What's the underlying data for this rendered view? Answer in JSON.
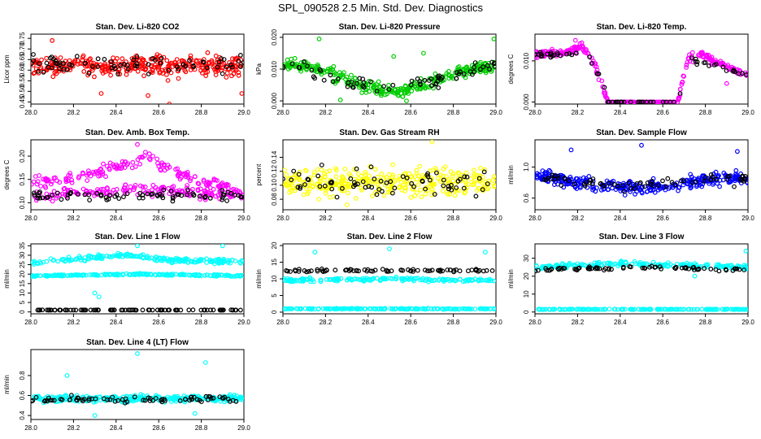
{
  "page_title": "SPL_090528  2.5 Min. Std. Dev. Diagnostics",
  "chart_data": [
    {
      "type": "scatter",
      "title": "Stan. Dev. Li-820 CO2",
      "ylabel": "Licor ppm",
      "xlim": [
        28.0,
        29.0
      ],
      "ylim": [
        0.44,
        0.77
      ],
      "yticks": [
        "0.45",
        "0.50",
        "0.55",
        "0.60",
        "0.65",
        "0.70",
        "0.75"
      ],
      "xticks": [
        "28.0",
        "28.2",
        "28.4",
        "28.6",
        "28.8",
        "29.0"
      ],
      "color": "#ff0000",
      "primary": {
        "base": [
          [
            28.0,
            0.62
          ],
          [
            0.5,
            0.62
          ],
          [
            1.0,
            0.62
          ]
        ],
        "noise": 0.045,
        "n": 330,
        "outliers": [
          [
            28.1,
            0.74
          ],
          [
            28.33,
            0.49
          ],
          [
            28.55,
            0.48
          ],
          [
            28.65,
            0.44
          ],
          [
            28.99,
            0.49
          ]
        ]
      },
      "black": {
        "base": [
          [
            28.0,
            0.63
          ],
          [
            1.0,
            0.63
          ]
        ],
        "noise": 0.045,
        "n": 75
      }
    },
    {
      "type": "scatter",
      "title": "Stan. Dev. Li-820 Pressure",
      "ylabel": "kPa",
      "xlim": [
        28.0,
        29.0
      ],
      "ylim": [
        -0.001,
        0.021
      ],
      "yticks": [
        "0.000",
        "0.010",
        "0.020"
      ],
      "xticks": [
        "28.0",
        "28.2",
        "28.4",
        "28.6",
        "28.8",
        "29.0"
      ],
      "color": "#00cc00",
      "primary": {
        "base": [
          [
            28.0,
            0.0115
          ],
          [
            28.2,
            0.0095
          ],
          [
            28.3,
            0.0065
          ],
          [
            28.45,
            0.0035
          ],
          [
            28.55,
            0.003
          ],
          [
            28.65,
            0.005
          ],
          [
            28.8,
            0.0085
          ],
          [
            29.0,
            0.0115
          ]
        ],
        "noise": 0.0018,
        "n": 330,
        "outliers": [
          [
            28.17,
            0.0195
          ],
          [
            28.52,
            0.014
          ],
          [
            28.66,
            0.015
          ],
          [
            28.99,
            0.0195
          ],
          [
            28.27,
            0.0003
          ],
          [
            28.58,
            0.0
          ]
        ]
      },
      "black": {
        "base": [
          [
            28.0,
            0.0115
          ],
          [
            28.3,
            0.006
          ],
          [
            28.5,
            0.004
          ],
          [
            28.7,
            0.006
          ],
          [
            29.0,
            0.0115
          ]
        ],
        "noise": 0.002,
        "n": 70
      }
    },
    {
      "type": "scatter",
      "title": "Stan. Dev. Li-820 Temp.",
      "ylabel": "degrees C",
      "xlim": [
        28.0,
        29.0
      ],
      "ylim": [
        -0.0005,
        0.0165
      ],
      "yticks": [
        "0.000",
        "0.010"
      ],
      "xticks": [
        "28.0",
        "28.2",
        "28.4",
        "28.6",
        "28.8",
        "29.0"
      ],
      "color": "#ff00ff",
      "primary": {
        "base": [
          [
            28.0,
            0.0115
          ],
          [
            28.15,
            0.012
          ],
          [
            28.22,
            0.0135
          ],
          [
            28.28,
            0.0095
          ],
          [
            28.31,
            0.005
          ],
          [
            28.34,
            0.0
          ],
          [
            28.67,
            0.0
          ],
          [
            28.69,
            0.0045
          ],
          [
            28.72,
            0.0105
          ],
          [
            28.78,
            0.0115
          ],
          [
            28.88,
            0.009
          ],
          [
            29.0,
            0.0065
          ]
        ],
        "noise": 0.0009,
        "n": 320,
        "outliers": [
          [
            28.19,
            0.015
          ],
          [
            28.9,
            0.0045
          ]
        ]
      },
      "black": {
        "base": [
          [
            28.0,
            0.0115
          ],
          [
            28.25,
            0.012
          ],
          [
            28.31,
            0.005
          ],
          [
            28.34,
            0.0
          ],
          [
            28.67,
            0.0
          ],
          [
            28.72,
            0.0105
          ],
          [
            29.0,
            0.0065
          ]
        ],
        "noise": 0.0009,
        "n": 70
      }
    },
    {
      "type": "scatter",
      "title": "Stan. Dev. Amb. Box Temp.",
      "ylabel": "degrees C",
      "xlim": [
        28.0,
        29.0
      ],
      "ylim": [
        0.085,
        0.235
      ],
      "yticks": [
        "0.10",
        "0.15",
        "0.20"
      ],
      "xticks": [
        "28.0",
        "28.2",
        "28.4",
        "28.6",
        "28.8",
        "29.0"
      ],
      "color": "#ff00ff",
      "primary": {
        "base": [
          [
            28.0,
            0.14
          ],
          [
            28.2,
            0.15
          ],
          [
            28.4,
            0.18
          ],
          [
            28.55,
            0.195
          ],
          [
            28.7,
            0.16
          ],
          [
            28.9,
            0.135
          ],
          [
            29.0,
            0.125
          ]
        ],
        "noise": 0.013,
        "n": 170,
        "outliers": [
          [
            28.5,
            0.225
          ]
        ]
      },
      "secondary": {
        "base": [
          [
            28.0,
            0.115
          ],
          [
            28.5,
            0.13
          ],
          [
            29.0,
            0.115
          ]
        ],
        "noise": 0.012,
        "n": 170
      },
      "black": {
        "base": [
          [
            28.0,
            0.115
          ],
          [
            1.0,
            0.115
          ]
        ],
        "noise": 0.01,
        "n": 75
      }
    },
    {
      "type": "scatter",
      "title": "Stan. Dev. Gas Stream RH",
      "ylabel": "percent",
      "xlim": [
        28.0,
        29.0
      ],
      "ylim": [
        0.065,
        0.165
      ],
      "yticks": [
        "0.08",
        "0.10",
        "0.12",
        "0.14"
      ],
      "xticks": [
        "28.0",
        "28.2",
        "28.4",
        "28.6",
        "28.8",
        "29.0"
      ],
      "color": "#ffff00",
      "primary": {
        "base": [
          [
            28.0,
            0.105
          ],
          [
            1.0,
            0.105
          ]
        ],
        "noise": 0.018,
        "n": 340,
        "outliers": [
          [
            28.7,
            0.162
          ],
          [
            28.3,
            0.072
          ]
        ]
      },
      "black": {
        "base": [
          [
            28.0,
            0.105
          ],
          [
            1.0,
            0.105
          ]
        ],
        "noise": 0.018,
        "n": 70
      }
    },
    {
      "type": "scatter",
      "title": "Stan. Dev. Sample Flow",
      "ylabel": "ml/min",
      "xlim": [
        28.0,
        29.0
      ],
      "ylim": [
        0.45,
        1.35
      ],
      "yticks": [
        "0.6",
        "1.0"
      ],
      "xticks": [
        "28.0",
        "28.2",
        "28.4",
        "28.6",
        "28.8",
        "29.0"
      ],
      "color": "#0000ff",
      "primary": {
        "base": [
          [
            28.0,
            0.9
          ],
          [
            28.2,
            0.8
          ],
          [
            28.35,
            0.75
          ],
          [
            28.5,
            0.73
          ],
          [
            28.7,
            0.78
          ],
          [
            28.85,
            0.85
          ],
          [
            29.0,
            0.85
          ]
        ],
        "noise": 0.08,
        "n": 330,
        "outliers": [
          [
            28.17,
            1.22
          ],
          [
            28.5,
            1.28
          ],
          [
            28.95,
            1.2
          ]
        ]
      },
      "black": {
        "base": [
          [
            28.0,
            0.88
          ],
          [
            28.4,
            0.75
          ],
          [
            29.0,
            0.85
          ]
        ],
        "noise": 0.07,
        "n": 70
      }
    },
    {
      "type": "scatter",
      "title": "Stan. Dev. Line 1 Flow",
      "ylabel": "ml/min",
      "xlim": [
        28.0,
        29.0
      ],
      "ylim": [
        -1,
        36
      ],
      "yticks": [
        "0",
        "5",
        "10",
        "15",
        "20",
        "25",
        "30",
        "35"
      ],
      "xticks": [
        "28.0",
        "28.2",
        "28.4",
        "28.6",
        "28.8",
        "29.0"
      ],
      "color": "#00ffff",
      "primary": {
        "base": [
          [
            28.0,
            26
          ],
          [
            28.2,
            28
          ],
          [
            28.45,
            30
          ],
          [
            28.6,
            28
          ],
          [
            28.8,
            27
          ],
          [
            29.0,
            27
          ]
        ],
        "noise": 1.2,
        "n": 200,
        "outliers": [
          [
            28.3,
            10
          ],
          [
            28.32,
            8
          ],
          [
            28.5,
            35
          ],
          [
            28.9,
            35
          ]
        ]
      },
      "secondary": {
        "base": [
          [
            28.0,
            19
          ],
          [
            28.5,
            20
          ],
          [
            29.0,
            19
          ]
        ],
        "noise": 0.4,
        "n": 200
      },
      "black": {
        "base": [
          [
            28.0,
            1
          ],
          [
            1.0,
            1
          ]
        ],
        "noise": 0.05,
        "n": 90
      }
    },
    {
      "type": "scatter",
      "title": "Stan. Dev. Line 2 Flow",
      "ylabel": "ml/min",
      "xlim": [
        28.0,
        29.0
      ],
      "ylim": [
        -0.5,
        20.5
      ],
      "yticks": [
        "0",
        "5",
        "10",
        "15",
        "20"
      ],
      "xticks": [
        "28.0",
        "28.2",
        "28.4",
        "28.6",
        "28.8",
        "29.0"
      ],
      "color": "#00ffff",
      "primary": {
        "base": [
          [
            28.0,
            9.5
          ],
          [
            28.5,
            10
          ],
          [
            29.0,
            9.5
          ]
        ],
        "noise": 0.5,
        "n": 170,
        "outliers": [
          [
            28.15,
            18
          ],
          [
            28.5,
            19
          ],
          [
            28.95,
            18
          ]
        ]
      },
      "secondary": {
        "base": [
          [
            28.0,
            1
          ],
          [
            1.0,
            1
          ]
        ],
        "noise": 0.12,
        "n": 170
      },
      "black": {
        "base": [
          [
            28.0,
            12.5
          ],
          [
            1.0,
            12.5
          ]
        ],
        "noise": 0.4,
        "n": 75
      }
    },
    {
      "type": "scatter",
      "title": "Stan. Dev. Line 3 Flow",
      "ylabel": "ml/min",
      "xlim": [
        28.0,
        29.0
      ],
      "ylim": [
        -1,
        38
      ],
      "yticks": [
        "0",
        "10",
        "20",
        "30"
      ],
      "xticks": [
        "28.0",
        "28.2",
        "28.4",
        "28.6",
        "28.8",
        "29.0"
      ],
      "color": "#00ffff",
      "primary": {
        "base": [
          [
            28.0,
            25
          ],
          [
            28.4,
            27
          ],
          [
            28.7,
            26
          ],
          [
            29.0,
            25
          ]
        ],
        "noise": 1.3,
        "n": 190,
        "outliers": [
          [
            28.75,
            20
          ],
          [
            28.99,
            34
          ]
        ]
      },
      "secondary": {
        "base": [
          [
            28.0,
            1.5
          ],
          [
            1.0,
            1.5
          ]
        ],
        "noise": 0.15,
        "n": 170
      },
      "black": {
        "base": [
          [
            28.0,
            23.5
          ],
          [
            28.5,
            25
          ],
          [
            29.0,
            23.5
          ]
        ],
        "noise": 0.8,
        "n": 75
      }
    },
    {
      "type": "scatter",
      "title": "Stan. Dev. Line 4 (LT) Flow",
      "ylabel": "ml/min",
      "xlim": [
        28.0,
        29.0
      ],
      "ylim": [
        0.36,
        1.06
      ],
      "yticks": [
        "0.4",
        "0.6",
        "0.8"
      ],
      "xticks": [
        "28.0",
        "28.2",
        "28.4",
        "28.6",
        "28.8",
        "29.0"
      ],
      "color": "#00ffff",
      "primary": {
        "base": [
          [
            28.0,
            0.57
          ],
          [
            1.0,
            0.57
          ]
        ],
        "noise": 0.03,
        "n": 320,
        "outliers": [
          [
            28.5,
            1.02
          ],
          [
            28.82,
            0.93
          ],
          [
            28.17,
            0.8
          ],
          [
            28.3,
            0.4
          ],
          [
            28.77,
            0.42
          ]
        ]
      },
      "black": {
        "base": [
          [
            28.0,
            0.56
          ],
          [
            1.0,
            0.56
          ]
        ],
        "noise": 0.03,
        "n": 75
      }
    }
  ]
}
